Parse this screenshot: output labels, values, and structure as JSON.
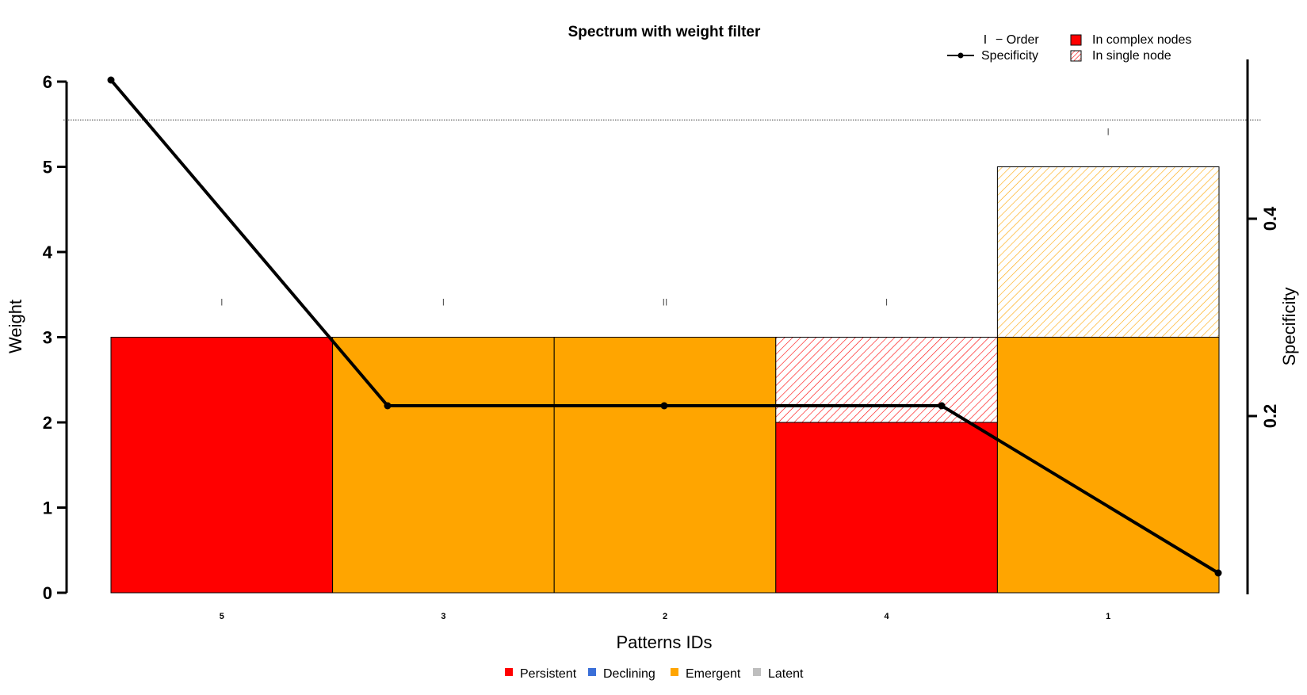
{
  "chart_data": {
    "type": "bar",
    "title": "Spectrum with weight filter",
    "xlabel": "Patterns IDs",
    "ylabel": "Weight",
    "y2label": "Specificity",
    "ylim": [
      0,
      6
    ],
    "y2_ticks": [
      "0.2",
      "0.4"
    ],
    "y_ticks": [
      "0",
      "1",
      "2",
      "3",
      "4",
      "5",
      "6"
    ],
    "weight_filter_line": 5.55,
    "categories": [
      "5",
      "3",
      "2",
      "4",
      "1"
    ],
    "bars": [
      {
        "id": "5",
        "status": "Persistent",
        "complex": 3,
        "single": 0,
        "order": "I"
      },
      {
        "id": "3",
        "status": "Emergent",
        "complex": 3,
        "single": 0,
        "order": "I"
      },
      {
        "id": "2",
        "status": "Emergent",
        "complex": 3,
        "single": 0,
        "order": "II"
      },
      {
        "id": "4",
        "status": "Persistent",
        "complex": 2,
        "single": 1,
        "order": "I"
      },
      {
        "id": "1",
        "status": "Emergent",
        "complex": 3,
        "single": 2,
        "order": "I"
      }
    ],
    "specificity": [
      0.5,
      0.2,
      0.2,
      0.2,
      0.0
    ],
    "specificity_x": [
      0.5,
      1.5,
      2.75,
      4.0,
      5.0
    ],
    "top_legend": {
      "order_symbol": "I",
      "order_label": "− Order",
      "specificity_label": "Specificity",
      "complex_label": "In complex nodes",
      "single_label": "In single node"
    },
    "status_legend": [
      {
        "label": "Persistent",
        "color": "#ff0000"
      },
      {
        "label": "Declining",
        "color": "#3a6fd8"
      },
      {
        "label": "Emergent",
        "color": "#ffa500"
      },
      {
        "label": "Latent",
        "color": "#bebebe"
      }
    ],
    "colors": {
      "Persistent": "#ff0000",
      "Declining": "#3a6fd8",
      "Emergent": "#ffa500",
      "Latent": "#bebebe"
    }
  }
}
